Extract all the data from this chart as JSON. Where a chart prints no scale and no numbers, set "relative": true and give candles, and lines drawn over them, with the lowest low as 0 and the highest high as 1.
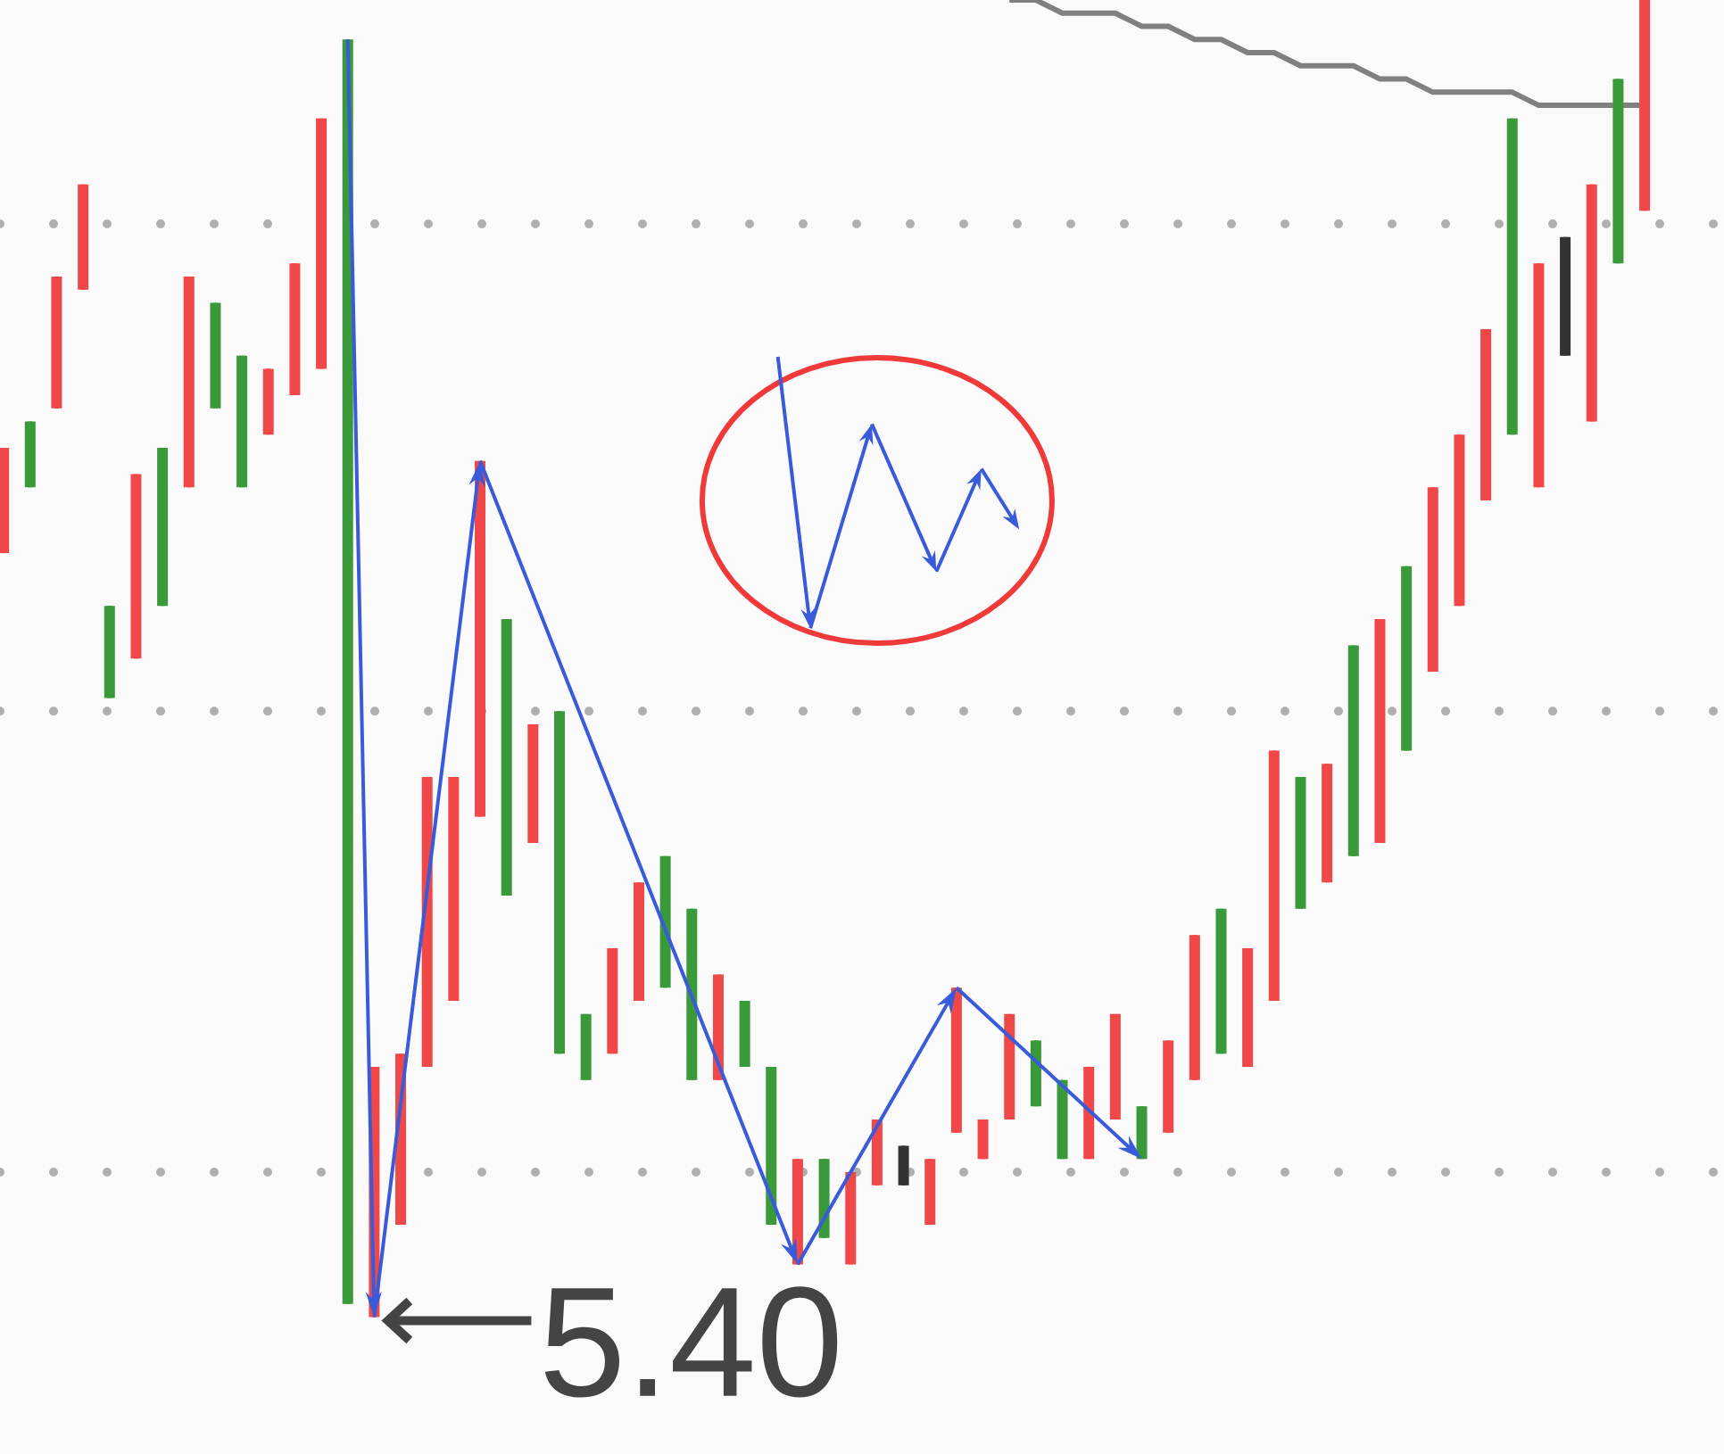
{
  "chart_data": {
    "type": "candlestick",
    "relative": true,
    "categories": [
      null,
      null,
      null,
      null,
      null,
      null,
      null,
      null,
      null,
      null,
      null,
      null,
      null,
      null,
      null,
      null,
      null,
      null,
      null,
      null,
      null,
      null,
      null,
      null,
      null,
      null,
      null,
      null,
      null,
      null,
      null,
      null,
      null,
      null,
      null,
      null,
      null,
      null,
      null,
      null,
      null,
      null,
      null,
      null,
      null,
      null,
      null,
      null,
      null,
      null,
      null,
      null,
      null,
      null,
      null,
      null,
      null,
      null,
      null,
      null,
      null,
      null,
      null
    ],
    "ohlc": [
      [
        0.58,
        0.66,
        0.58,
        0.66
      ],
      [
        0.68,
        0.68,
        0.63,
        0.63
      ],
      [
        0.69,
        0.79,
        0.69,
        0.79
      ],
      [
        0.78,
        0.86,
        0.78,
        0.86
      ],
      [
        0.54,
        0.54,
        0.47,
        0.47
      ],
      [
        0.5,
        0.64,
        0.5,
        0.64
      ],
      [
        0.66,
        0.66,
        0.54,
        0.54
      ],
      [
        0.63,
        0.79,
        0.63,
        0.79
      ],
      [
        0.77,
        0.77,
        0.69,
        0.69
      ],
      [
        0.73,
        0.73,
        0.63,
        0.63
      ],
      [
        0.67,
        0.72,
        0.67,
        0.72
      ],
      [
        0.7,
        0.8,
        0.7,
        0.8
      ],
      [
        0.72,
        0.91,
        0.72,
        0.91
      ],
      [
        0.97,
        0.97,
        0.01,
        0.01
      ],
      [
        0,
        0.19,
        0,
        0.19
      ],
      [
        0.07,
        0.2,
        0.07,
        0.2
      ],
      [
        0.19,
        0.41,
        0.19,
        0.41
      ],
      [
        0.24,
        0.41,
        0.24,
        0.41
      ],
      [
        0.38,
        0.65,
        0.38,
        0.65
      ],
      [
        0.53,
        0.53,
        0.32,
        0.32
      ],
      [
        0.36,
        0.45,
        0.36,
        0.45
      ],
      [
        0.46,
        0.46,
        0.2,
        0.2
      ],
      [
        0.23,
        0.23,
        0.18,
        0.18
      ],
      [
        0.2,
        0.28,
        0.2,
        0.28
      ],
      [
        0.24,
        0.33,
        0.24,
        0.33
      ],
      [
        0.35,
        0.35,
        0.25,
        0.25
      ],
      [
        0.31,
        0.31,
        0.18,
        0.18
      ],
      [
        0.18,
        0.26,
        0.18,
        0.26
      ],
      [
        0.24,
        0.24,
        0.19,
        0.19
      ],
      [
        0.19,
        0.19,
        0.07,
        0.07
      ],
      [
        0.04,
        0.12,
        0.04,
        0.12
      ],
      [
        0.12,
        0.12,
        0.06,
        0.06
      ],
      [
        0.04,
        0.11,
        0.04,
        0.11
      ],
      [
        0.1,
        0.15,
        0.1,
        0.15
      ],
      [
        0.13,
        0.13,
        0.1,
        0.1
      ],
      [
        0.07,
        0.12,
        0.07,
        0.12
      ],
      [
        0.14,
        0.25,
        0.14,
        0.25
      ],
      [
        0.12,
        0.15,
        0.12,
        0.15
      ],
      [
        0.15,
        0.23,
        0.15,
        0.23
      ],
      [
        0.21,
        0.21,
        0.16,
        0.16
      ],
      [
        0.18,
        0.18,
        0.12,
        0.12
      ],
      [
        0.12,
        0.19,
        0.12,
        0.19
      ],
      [
        0.15,
        0.23,
        0.15,
        0.23
      ],
      [
        0.16,
        0.16,
        0.12,
        0.12
      ],
      [
        0.14,
        0.21,
        0.14,
        0.21
      ],
      [
        0.18,
        0.29,
        0.18,
        0.29
      ],
      [
        0.31,
        0.31,
        0.2,
        0.2
      ],
      [
        0.19,
        0.28,
        0.19,
        0.28
      ],
      [
        0.24,
        0.43,
        0.24,
        0.43
      ],
      [
        0.41,
        0.41,
        0.31,
        0.31
      ],
      [
        0.33,
        0.42,
        0.33,
        0.42
      ],
      [
        0.51,
        0.51,
        0.35,
        0.35
      ],
      [
        0.36,
        0.53,
        0.36,
        0.53
      ],
      [
        0.57,
        0.57,
        0.43,
        0.43
      ],
      [
        0.49,
        0.63,
        0.49,
        0.63
      ],
      [
        0.54,
        0.67,
        0.54,
        0.67
      ],
      [
        0.62,
        0.75,
        0.62,
        0.75
      ],
      [
        0.91,
        0.91,
        0.67,
        0.67
      ],
      [
        0.63,
        0.8,
        0.63,
        0.8
      ],
      [
        0.82,
        0.82,
        0.73,
        0.73
      ],
      [
        0.68,
        0.86,
        0.68,
        0.86
      ],
      [
        0.94,
        0.94,
        0.8,
        0.8
      ],
      [
        0.84,
        1,
        0.84,
        1
      ]
    ],
    "colors": [
      "#f04848",
      "#3a9a3a",
      "#f04848",
      "#f04848",
      "#3a9a3a",
      "#f04848",
      "#3a9a3a",
      "#f04848",
      "#3a9a3a",
      "#3a9a3a",
      "#f04848",
      "#f04848",
      "#f04848",
      "#3a9a3a",
      "#f04848",
      "#f04848",
      "#f04848",
      "#f04848",
      "#f04848",
      "#3a9a3a",
      "#f04848",
      "#3a9a3a",
      "#3a9a3a",
      "#f04848",
      "#f04848",
      "#3a9a3a",
      "#3a9a3a",
      "#f04848",
      "#3a9a3a",
      "#3a9a3a",
      "#f04848",
      "#3a9a3a",
      "#f04848",
      "#f04848",
      "#333333",
      "#f04848",
      "#f04848",
      "#f04848",
      "#f04848",
      "#3a9a3a",
      "#3a9a3a",
      "#f04848",
      "#f04848",
      "#3a9a3a",
      "#f04848",
      "#f04848",
      "#3a9a3a",
      "#f04848",
      "#f04848",
      "#3a9a3a",
      "#f04848",
      "#3a9a3a",
      "#f04848",
      "#3a9a3a",
      "#f04848",
      "#f04848",
      "#f04848",
      "#3a9a3a",
      "#f04848",
      "#333333",
      "#f04848",
      "#3a9a3a",
      "#f04848"
    ],
    "series": [
      {
        "type": "line",
        "color": "#808080",
        "values": [
          null,
          null,
          null,
          null,
          null,
          null,
          null,
          null,
          null,
          null,
          null,
          null,
          null,
          null,
          null,
          null,
          null,
          null,
          null,
          null,
          null,
          null,
          null,
          null,
          null,
          null,
          null,
          null,
          null,
          null,
          null,
          null,
          null,
          null,
          null,
          null,
          null,
          null,
          1.0,
          1.0,
          0.99,
          0.99,
          0.99,
          0.98,
          0.98,
          0.97,
          0.97,
          0.96,
          0.96,
          0.95,
          0.95,
          0.95,
          0.94,
          0.94,
          0.93,
          0.93,
          0.93,
          0.93,
          0.92,
          0.92,
          0.92,
          0.92,
          0.92
        ]
      }
    ],
    "ref_lines": [
      {
        "axis": "y",
        "value": 0.83,
        "color": "#b0b0b0",
        "line_style": "dotted"
      },
      {
        "axis": "y",
        "value": 0.46,
        "color": "#b0b0b0",
        "line_style": "dotted"
      },
      {
        "axis": "y",
        "value": 0.11,
        "color": "#b0b0b0",
        "line_style": "dotted"
      }
    ],
    "annotations": [
      "5.40"
    ]
  }
}
